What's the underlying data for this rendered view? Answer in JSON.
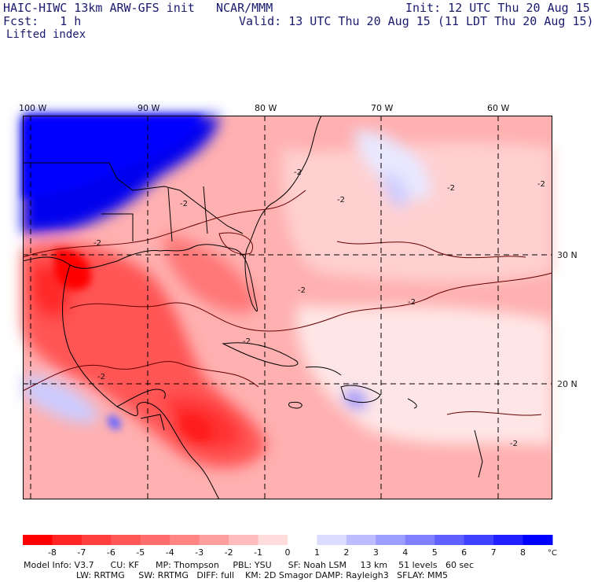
{
  "header": {
    "model": "HAIC-HIWC 13km ARW-GFS init",
    "org": "NCAR/MMM",
    "init": "Init: 12 UTC Thu 20 Aug 15",
    "fcst": "Fcst:   1 h",
    "valid": "Valid: 13 UTC Thu 20 Aug 15 (11 LDT Thu 20 Aug 15)",
    "field": "Lifted index"
  },
  "axes": {
    "lon_labels": [
      "100 W",
      "90 W",
      "80 W",
      "70 W",
      "60 W"
    ],
    "lat_labels": [
      "30 N",
      "20 N"
    ]
  },
  "contour_label": "-2",
  "colorbar": {
    "labels": [
      "-8",
      "-7",
      "-6",
      "-5",
      "-4",
      "-3",
      "-2",
      "-1",
      "0",
      "1",
      "2",
      "3",
      "4",
      "5",
      "6",
      "7",
      "8"
    ],
    "unit": "°C",
    "colors": [
      "#ff0000",
      "#ff2525",
      "#ff3e3e",
      "#ff5656",
      "#ff6d6d",
      "#ff8585",
      "#ff9e9e",
      "#ffbcbc",
      "#ffdddd",
      "#ffffff",
      "#dcdcff",
      "#bcbcff",
      "#9d9dff",
      "#8080ff",
      "#6060ff",
      "#4040ff",
      "#2020ff",
      "#0000ff"
    ]
  },
  "footer": {
    "line1": "Model Info: V3.7      CU: KF      MP: Thompson     PBL: YSU      SF: Noah LSM     13 km    51 levels   60 sec",
    "line2": "LW: RRTMG     SW: RRTMG   DIFF: full    KM: 2D Smagor DAMP: Rayleigh3   SFLAY: MM5"
  }
}
